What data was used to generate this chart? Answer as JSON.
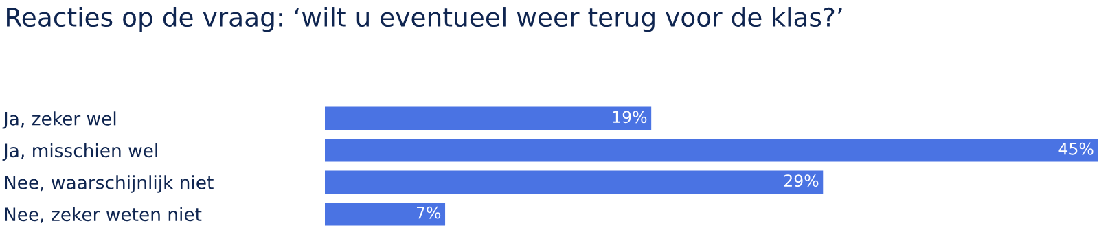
{
  "chart_data": {
    "type": "bar",
    "orientation": "horizontal",
    "title": "Reacties op de vraag: ‘wilt u eventueel weer terug voor de klas?’",
    "categories": [
      "Ja, zeker wel",
      "Ja, misschien wel",
      "Nee, waarschijnlijk niet",
      "Nee, zeker weten niet"
    ],
    "values": [
      19,
      45,
      29,
      7
    ],
    "value_labels": [
      "19%",
      "45%",
      "29%",
      "7%"
    ],
    "color": "#4a73e3",
    "grid": false,
    "legend": false
  }
}
